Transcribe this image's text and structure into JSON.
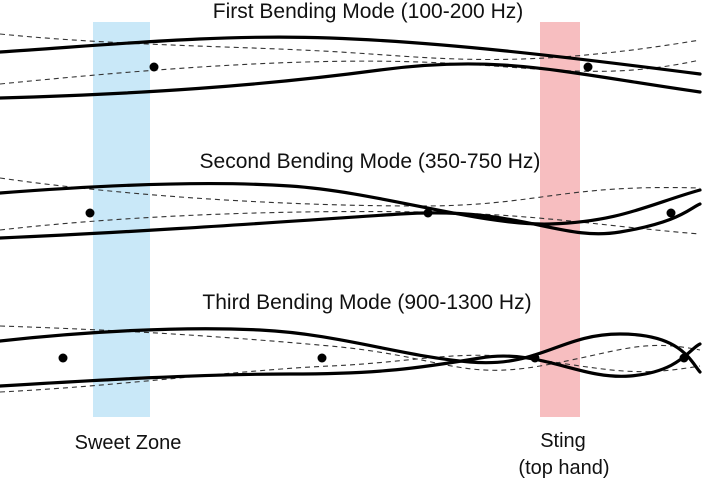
{
  "modes": [
    {
      "title": "First Bending Mode (100-200 Hz)"
    },
    {
      "title": "Second Bending Mode (350-750 Hz)"
    },
    {
      "title": "Third Bending Mode (900-1300 Hz)"
    }
  ],
  "zones": {
    "sweet": {
      "label": "Sweet Zone",
      "color": "#bfe4f7"
    },
    "sting": {
      "label_line1": "Sting",
      "label_line2": "(top hand)",
      "color": "#f6b3b5"
    }
  },
  "colors": {
    "solid_line": "#000000",
    "dashed_line": "#333333",
    "node_dot": "#000000"
  }
}
